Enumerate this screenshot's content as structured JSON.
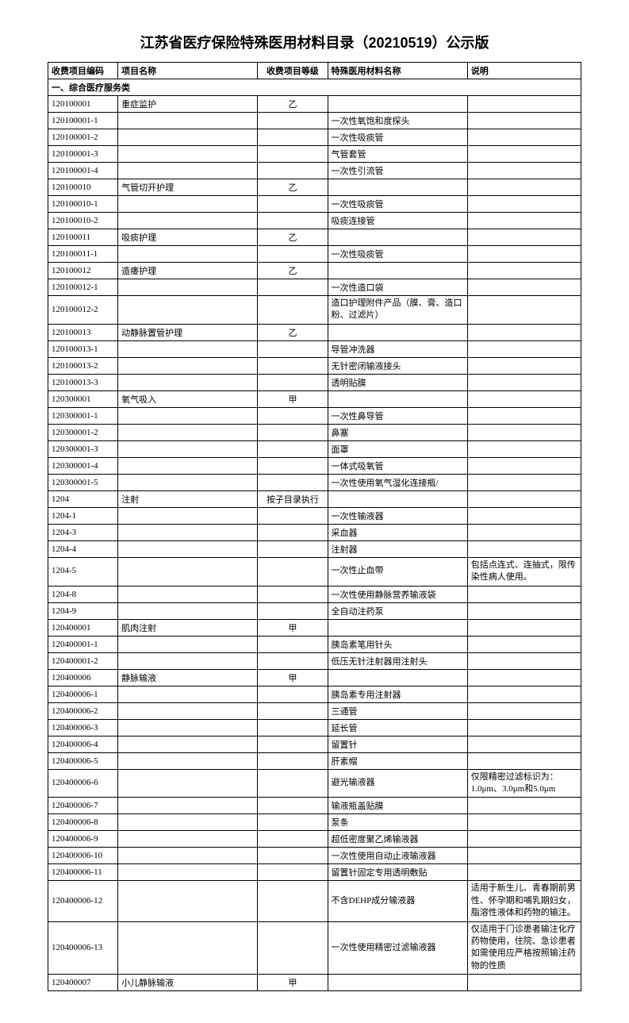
{
  "title": "江苏省医疗保险特殊医用材料目录（20210519）公示版",
  "headers": {
    "code": "收费项目编码",
    "name": "项目名称",
    "level": "收费项目等级",
    "material": "特殊医用材料名称",
    "note": "说明"
  },
  "section": "一、综合医疗服务类",
  "rows": [
    {
      "code": "120100001",
      "name": "重症监护",
      "level": "乙",
      "material": "",
      "note": ""
    },
    {
      "code": "120100001-1",
      "name": "",
      "level": "",
      "material": "一次性氧饱和度探头",
      "note": ""
    },
    {
      "code": "120100001-2",
      "name": "",
      "level": "",
      "material": "一次性吸痰管",
      "note": ""
    },
    {
      "code": "120100001-3",
      "name": "",
      "level": "",
      "material": "气管套管",
      "note": ""
    },
    {
      "code": "120100001-4",
      "name": "",
      "level": "",
      "material": "一次性引流管",
      "note": ""
    },
    {
      "code": "120100010",
      "name": "气管切开护理",
      "level": "乙",
      "material": "",
      "note": ""
    },
    {
      "code": "120100010-1",
      "name": "",
      "level": "",
      "material": "一次性吸痰管",
      "note": ""
    },
    {
      "code": "120100010-2",
      "name": "",
      "level": "",
      "material": "吸痰连接管",
      "note": ""
    },
    {
      "code": "120100011",
      "name": "吸痰护理",
      "level": "乙",
      "material": "",
      "note": ""
    },
    {
      "code": "120100011-1",
      "name": "",
      "level": "",
      "material": "一次性吸痰管",
      "note": ""
    },
    {
      "code": "120100012",
      "name": "造痿护理",
      "level": "乙",
      "material": "",
      "note": ""
    },
    {
      "code": "120100012-1",
      "name": "",
      "level": "",
      "material": "一次性造口袋",
      "note": ""
    },
    {
      "code": "120100012-2",
      "name": "",
      "level": "",
      "material": "造口护理附件产品（膜、膏、造口粉、过滤片）",
      "note": "",
      "tall": true
    },
    {
      "code": "120100013",
      "name": "动静脉置管护理",
      "level": "乙",
      "material": "",
      "note": ""
    },
    {
      "code": "120100013-1",
      "name": "",
      "level": "",
      "material": "导管冲洗器",
      "note": ""
    },
    {
      "code": "120100013-2",
      "name": "",
      "level": "",
      "material": "无针密闭输液接头",
      "note": ""
    },
    {
      "code": "120100013-3",
      "name": "",
      "level": "",
      "material": "透明贴膜",
      "note": ""
    },
    {
      "code": "120300001",
      "name": "氧气吸入",
      "level": "甲",
      "material": "",
      "note": ""
    },
    {
      "code": "120300001-1",
      "name": "",
      "level": "",
      "material": "一次性鼻导管",
      "note": ""
    },
    {
      "code": "120300001-2",
      "name": "",
      "level": "",
      "material": "鼻塞",
      "note": ""
    },
    {
      "code": "120300001-3",
      "name": "",
      "level": "",
      "material": "面罩",
      "note": ""
    },
    {
      "code": "120300001-4",
      "name": "",
      "level": "",
      "material": "一体式吸氧管",
      "note": ""
    },
    {
      "code": "120300001-5",
      "name": "",
      "level": "",
      "material": "一次性使用氧气湿化连接瓶/",
      "note": ""
    },
    {
      "code": "1204",
      "name": "注射",
      "level": "按子目录执行",
      "material": "",
      "note": ""
    },
    {
      "code": "1204-1",
      "name": "",
      "level": "",
      "material": "一次性输液器",
      "note": ""
    },
    {
      "code": "1204-3",
      "name": "",
      "level": "",
      "material": "采血器",
      "note": ""
    },
    {
      "code": "1204-4",
      "name": "",
      "level": "",
      "material": "注射器",
      "note": ""
    },
    {
      "code": "1204-5",
      "name": "",
      "level": "",
      "material": "一次性止血带",
      "note": "包括点连式、连抽式，限传染性病人使用。",
      "tall": true
    },
    {
      "code": "1204-8",
      "name": "",
      "level": "",
      "material": "一次性使用静脉营养输液袋",
      "note": ""
    },
    {
      "code": "1204-9",
      "name": "",
      "level": "",
      "material": "全自动注药泵",
      "note": ""
    },
    {
      "code": "120400001",
      "name": "肌肉注射",
      "level": "甲",
      "material": "",
      "note": ""
    },
    {
      "code": "120400001-1",
      "name": "",
      "level": "",
      "material": "胰岛素笔用针头",
      "note": ""
    },
    {
      "code": "120400001-2",
      "name": "",
      "level": "",
      "material": "低压无针注射器用注射头",
      "note": ""
    },
    {
      "code": "120400006",
      "name": "静脉输液",
      "level": "甲",
      "material": "",
      "note": ""
    },
    {
      "code": "120400006-1",
      "name": "",
      "level": "",
      "material": "胰岛素专用注射器",
      "note": ""
    },
    {
      "code": "120400006-2",
      "name": "",
      "level": "",
      "material": "三通管",
      "note": ""
    },
    {
      "code": "120400006-3",
      "name": "",
      "level": "",
      "material": "延长管",
      "note": ""
    },
    {
      "code": "120400006-4",
      "name": "",
      "level": "",
      "material": "留置针",
      "note": ""
    },
    {
      "code": "120400006-5",
      "name": "",
      "level": "",
      "material": "肝素帽",
      "note": ""
    },
    {
      "code": "120400006-6",
      "name": "",
      "level": "",
      "material": "避光输液器",
      "note": "仅限精密过滤标识为：1.0μm、3.0μm和5.0μm",
      "tall": true
    },
    {
      "code": "120400006-7",
      "name": "",
      "level": "",
      "material": "输液瓶盖贴膜",
      "note": ""
    },
    {
      "code": "120400006-8",
      "name": "",
      "level": "",
      "material": "泵条",
      "note": ""
    },
    {
      "code": "120400006-9",
      "name": "",
      "level": "",
      "material": "超低密度聚乙烯输液器",
      "note": ""
    },
    {
      "code": "120400006-10",
      "name": "",
      "level": "",
      "material": "一次性使用自动止液输液器",
      "note": ""
    },
    {
      "code": "120400006-11",
      "name": "",
      "level": "",
      "material": "留置针固定专用透明敷贴",
      "note": ""
    },
    {
      "code": "120400006-12",
      "name": "",
      "level": "",
      "material": "不含DEHP成分输液器",
      "note": "适用于新生儿、青春期前男性、怀孕期和哺乳期妇女，脂溶性液体和药物的输注。",
      "tall": true
    },
    {
      "code": "120400006-13",
      "name": "",
      "level": "",
      "material": "一次性使用精密过滤输液器",
      "note": "仅适用于门诊患者输注化疗药物使用，住院、急诊患者如需使用应严格按照输注药物的性质",
      "tall": true
    },
    {
      "code": "120400007",
      "name": "小儿静脉输液",
      "level": "甲",
      "material": "",
      "note": ""
    }
  ]
}
